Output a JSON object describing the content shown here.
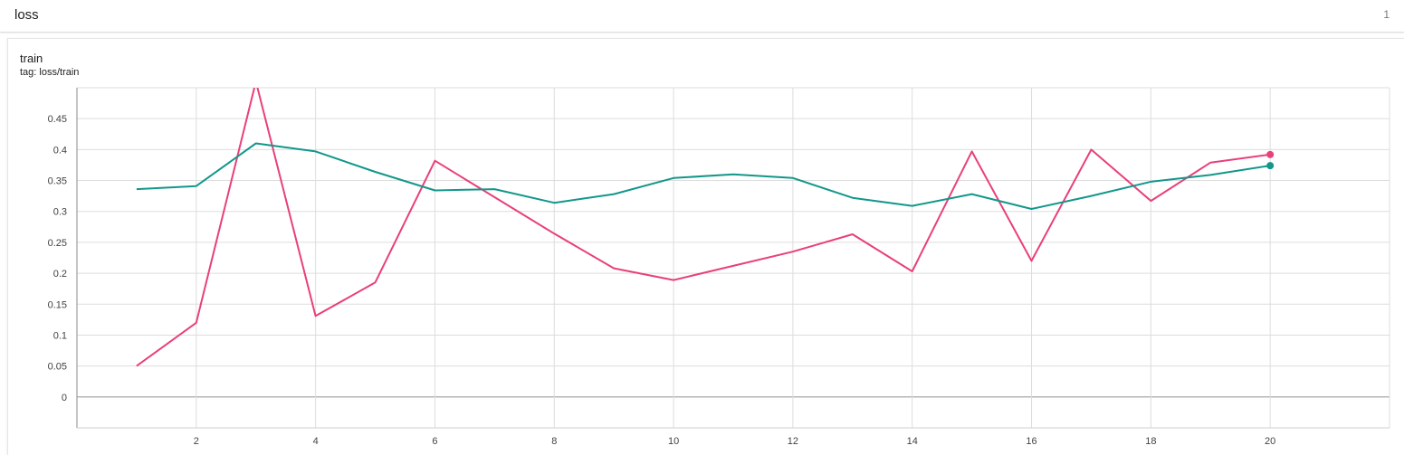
{
  "header": {
    "title": "loss",
    "count": "1"
  },
  "card": {
    "title": "train",
    "tag": "tag: loss/train"
  },
  "chart_data": {
    "type": "line",
    "title": "train",
    "subtitle": "tag: loss/train",
    "xlabel": "",
    "ylabel": "",
    "xlim": [
      0,
      22
    ],
    "ylim": [
      -0.05,
      0.5
    ],
    "xticks": [
      2,
      4,
      6,
      8,
      10,
      12,
      14,
      16,
      18,
      20
    ],
    "xtick_labels": [
      "2",
      "4",
      "6",
      "8",
      "10",
      "12",
      "14",
      "16",
      "18",
      "20"
    ],
    "yticks": [
      0,
      0.05,
      0.1,
      0.15,
      0.2,
      0.25,
      0.3,
      0.35,
      0.4,
      0.45
    ],
    "ytick_labels": [
      "0",
      "0.05",
      "0.1",
      "0.15",
      "0.2",
      "0.25",
      "0.3",
      "0.35",
      "0.4",
      "0.45"
    ],
    "grid": true,
    "legend": "none",
    "x": [
      1,
      2,
      3,
      4,
      5,
      6,
      7,
      8,
      9,
      10,
      11,
      12,
      13,
      14,
      15,
      16,
      17,
      18,
      19,
      20
    ],
    "series": [
      {
        "color": "#e8407a",
        "values": [
          0.05,
          0.12,
          0.51,
          0.131,
          0.185,
          0.382,
          0.323,
          0.264,
          0.208,
          0.189,
          0.212,
          0.235,
          0.263,
          0.203,
          0.397,
          0.22,
          0.4,
          0.317,
          0.379,
          0.392
        ]
      },
      {
        "color": "#12978a",
        "values": [
          0.336,
          0.341,
          0.41,
          0.397,
          0.364,
          0.334,
          0.336,
          0.314,
          0.328,
          0.354,
          0.36,
          0.354,
          0.322,
          0.309,
          0.328,
          0.304,
          0.325,
          0.348,
          0.359,
          0.374
        ]
      }
    ]
  }
}
